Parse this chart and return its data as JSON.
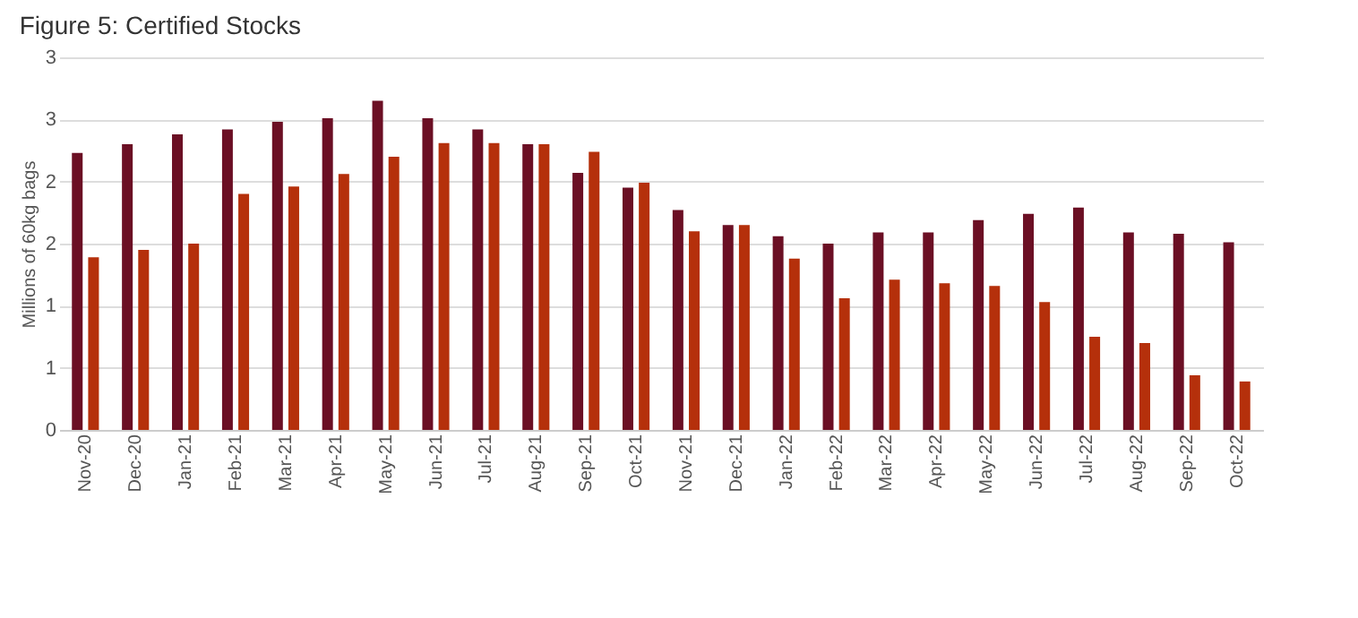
{
  "chart_data": {
    "type": "bar",
    "title": "Figure 5: Certified Stocks",
    "ylabel": "Millions of 60kg bags",
    "categories": [
      "Nov-20",
      "Dec-20",
      "Jan-21",
      "Feb-21",
      "Mar-21",
      "Apr-21",
      "May-21",
      "Jun-21",
      "Jul-21",
      "Aug-21",
      "Sep-21",
      "Oct-21",
      "Nov-21",
      "Dec-21",
      "Jan-22",
      "Feb-22",
      "Mar-22",
      "Apr-22",
      "May-22",
      "Jun-22",
      "Jul-22",
      "Aug-22",
      "Sep-22",
      "Oct-22"
    ],
    "series": [
      {
        "color": "#6b0f24",
        "values": [
          2.23,
          2.3,
          2.38,
          2.42,
          2.48,
          2.51,
          2.65,
          2.51,
          2.42,
          2.3,
          2.07,
          1.95,
          1.77,
          1.65,
          1.56,
          1.5,
          1.59,
          1.59,
          1.69,
          1.74,
          1.79,
          1.59,
          1.58,
          1.51
        ]
      },
      {
        "color": "#b5300b",
        "values": [
          1.39,
          1.45,
          1.5,
          1.9,
          1.96,
          2.06,
          2.2,
          2.31,
          2.31,
          2.3,
          2.24,
          1.99,
          1.6,
          1.65,
          1.38,
          1.06,
          1.21,
          1.18,
          1.16,
          1.03,
          0.75,
          0.7,
          0.44,
          0.39
        ]
      }
    ],
    "ylim": [
      0,
      3.0
    ],
    "yticks": [
      0,
      {
        "value": 0.5,
        "label": "1"
      },
      {
        "value": 1.0,
        "label": "1"
      },
      {
        "value": 1.5,
        "label": "2"
      },
      {
        "value": 2.0,
        "label": "2"
      },
      {
        "value": 2.5,
        "label": "3"
      },
      {
        "value": 3.0,
        "label": "3"
      }
    ],
    "grid": "y"
  }
}
